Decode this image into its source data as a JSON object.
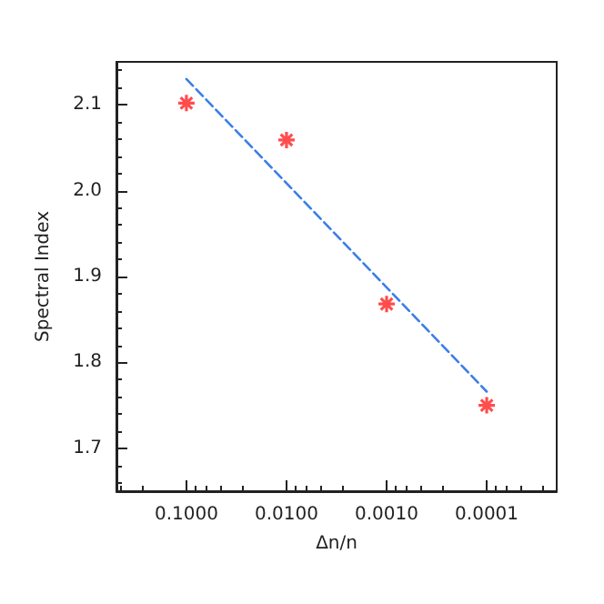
{
  "chart_data": {
    "type": "scatter",
    "xlabel": "Δn/n",
    "ylabel": "Spectral Index",
    "log": "x",
    "xlim": [
      0.5,
      2e-05
    ],
    "xticks": [
      {
        "value": 0.1,
        "label": "0.1000"
      },
      {
        "value": 0.01,
        "label": "0.0100"
      },
      {
        "value": 0.001,
        "label": "0.0010"
      },
      {
        "value": 0.0001,
        "label": "0.0001"
      }
    ],
    "ylim": [
      1.65,
      2.15
    ],
    "yticks": [
      {
        "value": 1.7,
        "label": "1.7"
      },
      {
        "value": 1.8,
        "label": "1.8"
      },
      {
        "value": 1.9,
        "label": "1.9"
      },
      {
        "value": 2.0,
        "label": "2.0"
      },
      {
        "value": 2.1,
        "label": "2.1"
      }
    ],
    "grid": false,
    "series": [
      {
        "color": "#ff2020",
        "marker": "cross",
        "x": [
          0.1,
          0.01,
          0.001,
          0.0001
        ],
        "values": [
          2.102,
          2.059,
          1.868,
          1.75
        ]
      },
      {
        "type": "line",
        "color": "#3a7ee8",
        "line_style": "dashed",
        "marker": "none",
        "x": [
          0.1,
          0.0001
        ],
        "values": [
          2.13,
          1.766
        ]
      }
    ]
  }
}
